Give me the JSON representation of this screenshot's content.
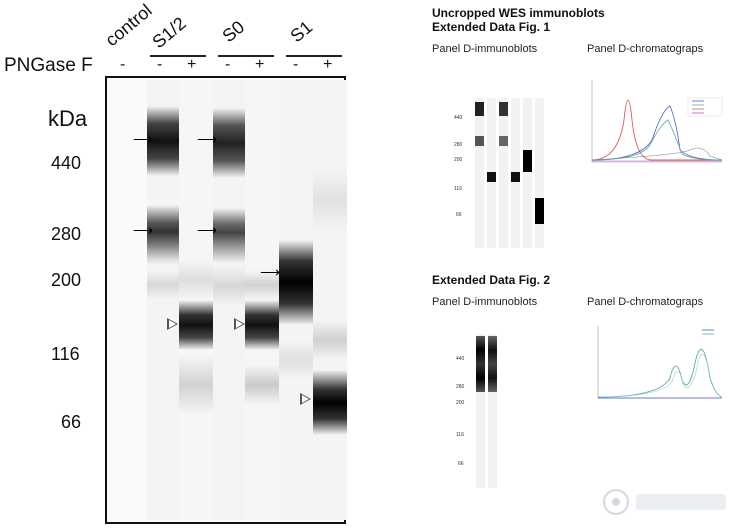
{
  "main_blot": {
    "treatment_label": "PNGase F",
    "mw_unit": "kDa",
    "samples": [
      {
        "name": "control",
        "treatments": [
          "-"
        ]
      },
      {
        "name": "S1/2",
        "treatments": [
          "-",
          "+"
        ]
      },
      {
        "name": "S0",
        "treatments": [
          "-",
          "+"
        ]
      },
      {
        "name": "S1",
        "treatments": [
          "-",
          "+"
        ]
      }
    ],
    "mw_markers": [
      "440",
      "280",
      "200",
      "116",
      "66"
    ]
  },
  "right_panel": {
    "title_line1": "Uncropped WES immunoblots",
    "fig1": {
      "title": "Extended Data Fig. 1",
      "immunoblots_label": "Panel D-immunoblots",
      "chromatographs_label": "Panel D-chromatograps",
      "mw_markers": [
        "440",
        "280",
        "200",
        "116",
        "66"
      ]
    },
    "fig2": {
      "title": "Extended Data Fig. 2",
      "immunoblots_label": "Panel D-immunoblots",
      "chromatographs_label": "Panel D-chromatograps",
      "mw_markers": [
        "440",
        "280",
        "200",
        "116",
        "66"
      ]
    }
  },
  "colors": {
    "band_dark": "#111111",
    "chrom_red": "#e3565a",
    "chrom_blue": "#4a5fd0",
    "chrom_teal": "#5fa7a3"
  }
}
